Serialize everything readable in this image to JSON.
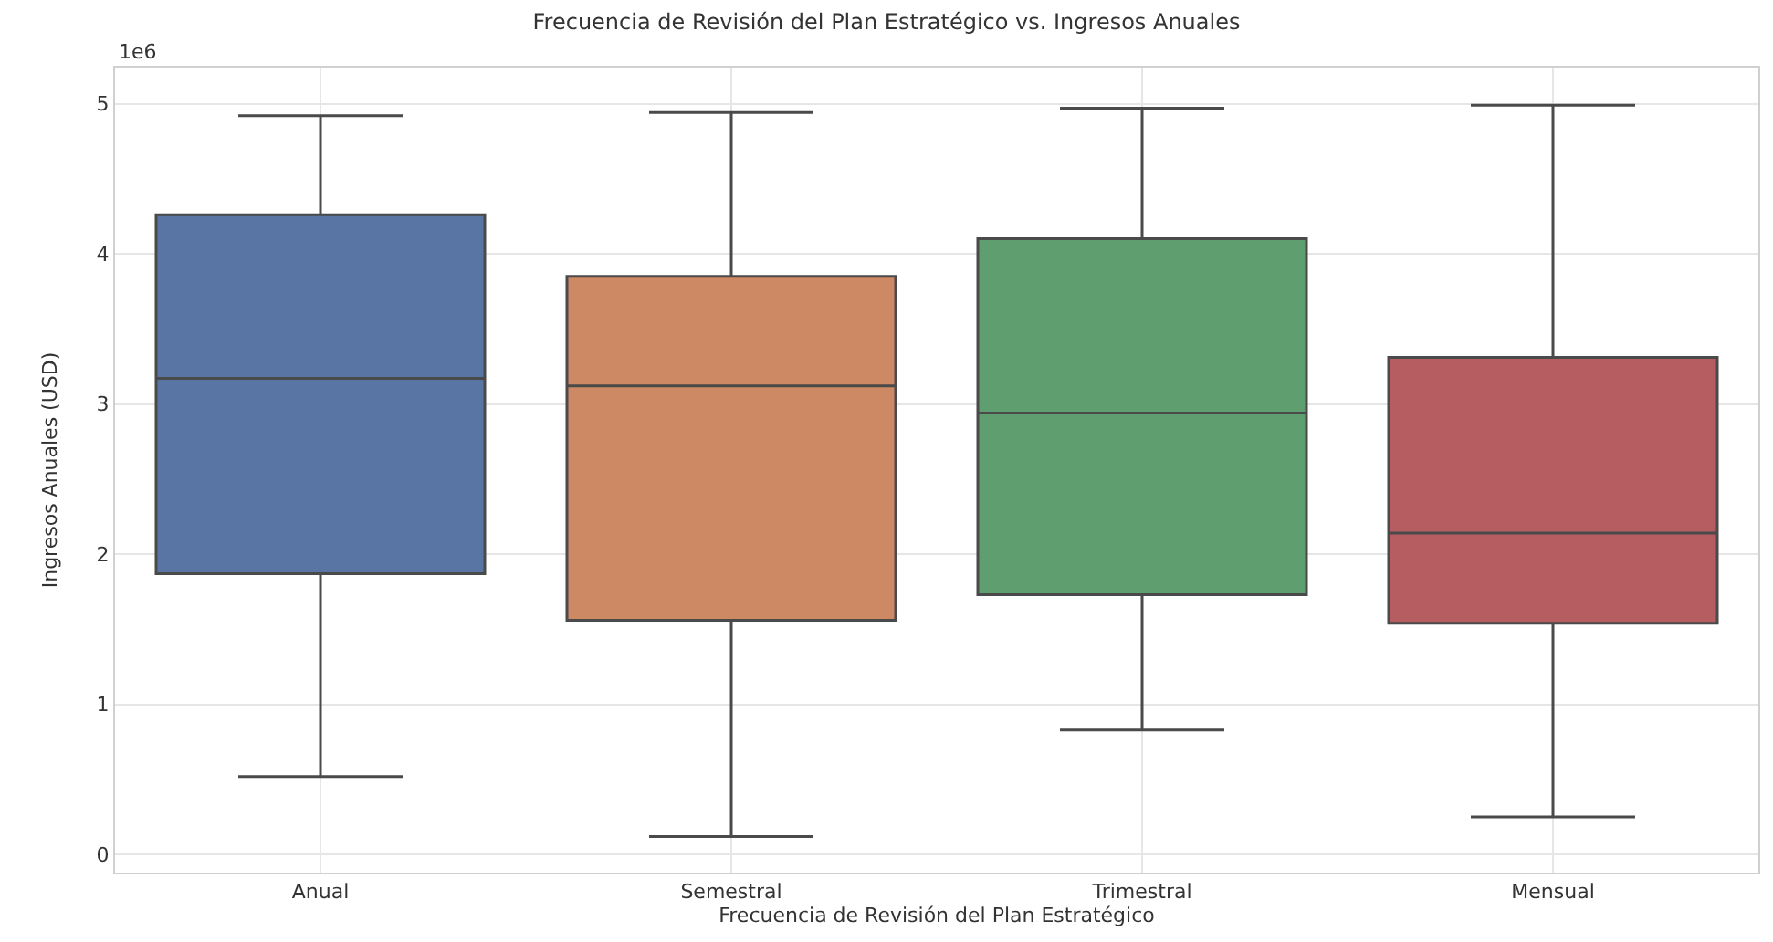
{
  "chart_data": {
    "type": "box",
    "title": "Frecuencia de Revisión del Plan Estratégico vs. Ingresos Anuales",
    "xlabel": "Frecuencia de Revisión del Plan Estratégico",
    "ylabel": "Ingresos Anuales (USD)",
    "categories": [
      "Anual",
      "Semestral",
      "Trimestral",
      "Mensual"
    ],
    "colors": [
      "#5875a4",
      "#cc8963",
      "#5f9e6e",
      "#b55d60"
    ],
    "boxes": [
      {
        "low": 0.52,
        "q1": 1.87,
        "median": 3.17,
        "q3": 4.26,
        "high": 4.92
      },
      {
        "low": 0.12,
        "q1": 1.56,
        "median": 3.12,
        "q3": 3.85,
        "high": 4.94
      },
      {
        "low": 0.83,
        "q1": 1.73,
        "median": 2.94,
        "q3": 4.1,
        "high": 4.97
      },
      {
        "low": 0.25,
        "q1": 1.54,
        "median": 2.14,
        "q3": 3.31,
        "high": 4.99
      }
    ],
    "ylim": [
      -0.12,
      5.24
    ],
    "yticks": [
      0,
      1,
      2,
      3,
      4,
      5
    ],
    "annotations": [
      "1e6"
    ],
    "grid": true
  }
}
